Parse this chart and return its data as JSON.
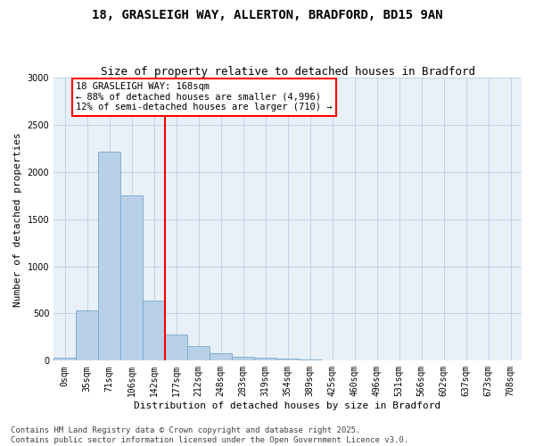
{
  "title_line1": "18, GRASLEIGH WAY, ALLERTON, BRADFORD, BD15 9AN",
  "title_line2": "Size of property relative to detached houses in Bradford",
  "xlabel": "Distribution of detached houses by size in Bradford",
  "ylabel": "Number of detached properties",
  "categories": [
    "0sqm",
    "35sqm",
    "71sqm",
    "106sqm",
    "142sqm",
    "177sqm",
    "212sqm",
    "248sqm",
    "283sqm",
    "319sqm",
    "354sqm",
    "389sqm",
    "425sqm",
    "460sqm",
    "496sqm",
    "531sqm",
    "566sqm",
    "602sqm",
    "637sqm",
    "673sqm",
    "708sqm"
  ],
  "values": [
    30,
    530,
    2220,
    1750,
    640,
    280,
    155,
    80,
    45,
    30,
    20,
    10,
    0,
    0,
    0,
    0,
    0,
    0,
    0,
    0,
    0
  ],
  "bar_color": "#b8d0e8",
  "bar_edge_color": "#7aa8cc",
  "vline_color": "red",
  "vline_x_index": 4.5,
  "annotation_text": "18 GRASLEIGH WAY: 168sqm\n← 88% of detached houses are smaller (4,996)\n12% of semi-detached houses are larger (710) →",
  "annotation_box_color": "white",
  "annotation_box_edge_color": "red",
  "ylim": [
    0,
    3000
  ],
  "yticks": [
    0,
    500,
    1000,
    1500,
    2000,
    2500,
    3000
  ],
  "grid_color": "#c0d4e8",
  "background_color": "#e8f0f8",
  "footer_line1": "Contains HM Land Registry data © Crown copyright and database right 2025.",
  "footer_line2": "Contains public sector information licensed under the Open Government Licence v3.0.",
  "title_fontsize": 10,
  "subtitle_fontsize": 9,
  "axis_label_fontsize": 8,
  "tick_fontsize": 7,
  "annotation_fontsize": 7.5,
  "footer_fontsize": 6.5
}
